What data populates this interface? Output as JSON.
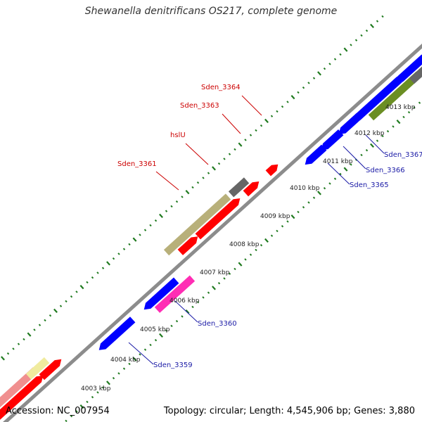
{
  "title": "Shewanella denitrificans OS217, complete genome",
  "footer": {
    "accession": "Accession: NC_007954",
    "stats": "Topology: circular; Length: 4,545,906 bp; Genes: 3,880"
  },
  "colors": {
    "backbone": "#8c8c8c",
    "ticks": "#1f7a1f",
    "label_top": "#cc0000",
    "label_bottom": "#1a1aa6"
  },
  "kbp_labels": [
    "4003 kbp",
    "4004 kbp",
    "4005 kbp",
    "4006 kbp",
    "4007 kbp",
    "4008 kbp",
    "4009 kbp",
    "4010 kbp",
    "4011 kbp",
    "4012 kbp",
    "4013 kbp"
  ],
  "genes_top": [
    {
      "name": "Sden_3364"
    },
    {
      "name": "Sden_3363"
    },
    {
      "name": "hslU"
    },
    {
      "name": "Sden_3361"
    }
  ],
  "genes_bottom": [
    {
      "name": "Sden_3367"
    },
    {
      "name": "Sden_3366"
    },
    {
      "name": "Sden_3365"
    },
    {
      "name": "Sden_3360"
    },
    {
      "name": "Sden_3359"
    }
  ]
}
